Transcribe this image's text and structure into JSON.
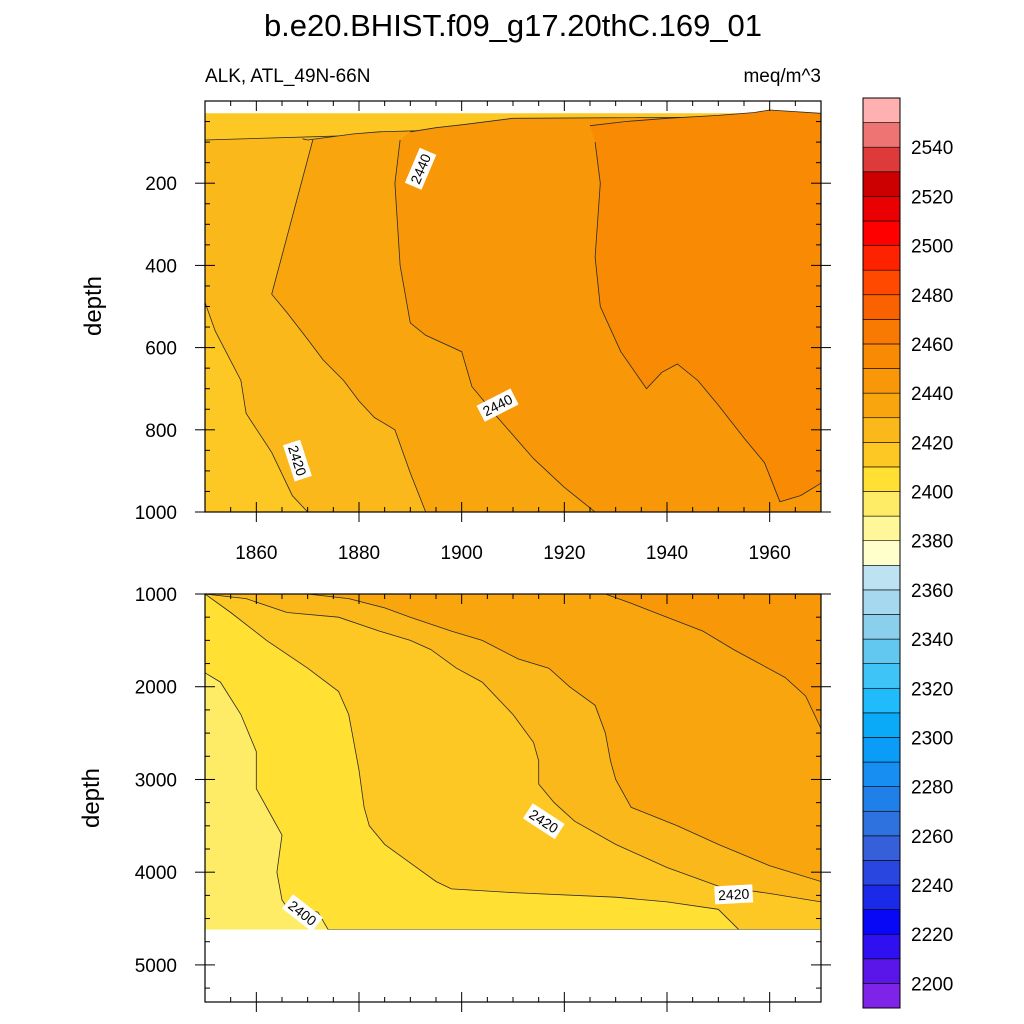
{
  "chart_data": {
    "type": "contour",
    "title": "b.e20.BHIST.f09_g17.20thC.169_01",
    "variable": "ALK, ATL_49N-66N",
    "units": "meq/m^3",
    "xlabel": "",
    "ylabel": "depth",
    "xlim": [
      1850,
      1970
    ],
    "x_ticks": [
      1860,
      1880,
      1900,
      1920,
      1940,
      1960
    ],
    "x_tick_labels": [
      "1860",
      "1880",
      "1900",
      "1920",
      "1940",
      "1960"
    ],
    "panels": [
      {
        "name": "upper",
        "ylim": [
          0,
          1000
        ],
        "y_ticks": [
          200,
          400,
          600,
          800,
          1000
        ],
        "y_tick_labels": [
          "200",
          "400",
          "600",
          "800",
          "1000"
        ],
        "regions": [
          {
            "range": [
              2410,
              2420
            ],
            "points": [
              [
                1850,
                30
              ],
              [
                1970,
                30
              ],
              [
                1970,
                1000
              ],
              [
                1850,
                1000
              ]
            ]
          },
          {
            "range": [
              2420,
              2430
            ],
            "points": [
              [
                1850,
                95
              ],
              [
                1970,
                50
              ],
              [
                1970,
                1000
              ],
              [
                1870,
                1000
              ],
              [
                1867,
                960
              ],
              [
                1863,
                855
              ],
              [
                1858,
                760
              ],
              [
                1857,
                680
              ],
              [
                1852,
                560
              ],
              [
                1850,
                490
              ]
            ]
          },
          {
            "range": [
              2430,
              2440
            ],
            "points": [
              [
                1869,
                92
              ],
              [
                1870,
                95
              ],
              [
                1879,
                80
              ],
              [
                1884,
                75
              ],
              [
                1970,
                45
              ],
              [
                1970,
                1000
              ],
              [
                1893,
                1000
              ],
              [
                1890,
                905
              ],
              [
                1887,
                800
              ],
              [
                1883,
                770
              ],
              [
                1880,
                730
              ],
              [
                1877,
                680
              ],
              [
                1873,
                630
              ],
              [
                1870,
                580
              ],
              [
                1866,
                515
              ],
              [
                1863,
                470
              ],
              [
                1871,
                95
              ]
            ]
          },
          {
            "range": [
              2440,
              2450
            ],
            "points": [
              [
                1890,
                75
              ],
              [
                1895,
                65
              ],
              [
                1900,
                58
              ],
              [
                1910,
                42
              ],
              [
                1970,
                38
              ],
              [
                1970,
                1000
              ],
              [
                1926,
                1000
              ],
              [
                1920,
                940
              ],
              [
                1914,
                870
              ],
              [
                1907,
                770
              ],
              [
                1902,
                695
              ],
              [
                1900,
                610
              ],
              [
                1893,
                570
              ],
              [
                1890,
                540
              ],
              [
                1888,
                400
              ],
              [
                1887,
                200
              ],
              [
                1888,
                95
              ]
            ]
          },
          {
            "range": [
              2450,
              2460
            ],
            "points": [
              [
                1925,
                60
              ],
              [
                1932,
                50
              ],
              [
                1940,
                42
              ],
              [
                1950,
                35
              ],
              [
                1957,
                28
              ],
              [
                1960,
                22
              ],
              [
                1970,
                30
              ],
              [
                1970,
                930
              ],
              [
                1966,
                960
              ],
              [
                1962,
                975
              ],
              [
                1959,
                880
              ],
              [
                1955,
                820
              ],
              [
                1950,
                740
              ],
              [
                1946,
                680
              ],
              [
                1942,
                640
              ],
              [
                1939,
                660
              ],
              [
                1936,
                700
              ],
              [
                1931,
                610
              ],
              [
                1927,
                500
              ],
              [
                1926,
                380
              ],
              [
                1927,
                200
              ],
              [
                1926,
                100
              ]
            ]
          }
        ],
        "contour_labels": [
          {
            "text": "2440",
            "x": 1892,
            "y": 165,
            "angle": -67
          },
          {
            "text": "2440",
            "x": 1907,
            "y": 740,
            "angle": -27
          },
          {
            "text": "2420",
            "x": 1868,
            "y": 875,
            "angle": 72
          }
        ]
      },
      {
        "name": "lower",
        "ylim": [
          1000,
          5400
        ],
        "y_ticks": [
          1000,
          2000,
          3000,
          4000,
          5000
        ],
        "y_tick_labels": [
          "1000",
          "2000",
          "3000",
          "4000",
          "5000"
        ],
        "data_max_depth": 4620,
        "regions": [
          {
            "range": [
              2390,
              2400
            ],
            "points": [
              [
                1850,
                1000
              ],
              [
                1970,
                1000
              ],
              [
                1970,
                4620
              ],
              [
                1850,
                4620
              ]
            ]
          },
          {
            "range": [
              2400,
              2410
            ],
            "points": [
              [
                1850,
                1850
              ],
              [
                1853,
                1950
              ],
              [
                1857,
                2300
              ],
              [
                1860,
                2700
              ],
              [
                1860,
                3100
              ],
              [
                1863,
                3400
              ],
              [
                1865,
                3600
              ],
              [
                1864,
                4000
              ],
              [
                1865,
                4300
              ],
              [
                1866,
                4380
              ],
              [
                1872,
                4430
              ],
              [
                1874,
                4620
              ],
              [
                1970,
                4620
              ],
              [
                1970,
                1000
              ],
              [
                1850,
                1000
              ]
            ]
          },
          {
            "range": [
              2410,
              2420
            ],
            "points": [
              [
                1850,
                1000
              ],
              [
                1855,
                1200
              ],
              [
                1862,
                1500
              ],
              [
                1870,
                1800
              ],
              [
                1876,
                2050
              ],
              [
                1878,
                2300
              ],
              [
                1879,
                2600
              ],
              [
                1880,
                2900
              ],
              [
                1881,
                3300
              ],
              [
                1882,
                3500
              ],
              [
                1885,
                3700
              ],
              [
                1890,
                3900
              ],
              [
                1895,
                4100
              ],
              [
                1898,
                4180
              ],
              [
                1910,
                4220
              ],
              [
                1930,
                4270
              ],
              [
                1940,
                4320
              ],
              [
                1950,
                4400
              ],
              [
                1954,
                4620
              ],
              [
                1970,
                4620
              ],
              [
                1970,
                1000
              ]
            ]
          },
          {
            "range": [
              2420,
              2430
            ],
            "points": [
              [
                1850,
                1000
              ],
              [
                1858,
                1050
              ],
              [
                1866,
                1200
              ],
              [
                1876,
                1250
              ],
              [
                1884,
                1400
              ],
              [
                1890,
                1500
              ],
              [
                1894,
                1600
              ],
              [
                1899,
                1800
              ],
              [
                1904,
                1950
              ],
              [
                1910,
                2300
              ],
              [
                1914,
                2600
              ],
              [
                1915,
                2800
              ],
              [
                1915,
                3050
              ],
              [
                1918,
                3250
              ],
              [
                1922,
                3450
              ],
              [
                1930,
                3700
              ],
              [
                1940,
                3950
              ],
              [
                1950,
                4150
              ],
              [
                1960,
                4230
              ],
              [
                1970,
                4320
              ],
              [
                1970,
                1000
              ]
            ]
          },
          {
            "range": [
              2430,
              2440
            ],
            "points": [
              [
                1870,
                1000
              ],
              [
                1878,
                1050
              ],
              [
                1885,
                1150
              ],
              [
                1890,
                1250
              ],
              [
                1898,
                1400
              ],
              [
                1904,
                1500
              ],
              [
                1911,
                1700
              ],
              [
                1917,
                1800
              ],
              [
                1921,
                2000
              ],
              [
                1926,
                2200
              ],
              [
                1928,
                2500
              ],
              [
                1929,
                2800
              ],
              [
                1930,
                3000
              ],
              [
                1933,
                3300
              ],
              [
                1942,
                3500
              ],
              [
                1950,
                3700
              ],
              [
                1960,
                3930
              ],
              [
                1970,
                4100
              ],
              [
                1970,
                1000
              ]
            ]
          },
          {
            "range": [
              2440,
              2450
            ],
            "points": [
              [
                1928,
                1000
              ],
              [
                1933,
                1100
              ],
              [
                1940,
                1250
              ],
              [
                1947,
                1400
              ],
              [
                1953,
                1600
              ],
              [
                1958,
                1750
              ],
              [
                1963,
                1900
              ],
              [
                1967,
                2100
              ],
              [
                1970,
                2450
              ],
              [
                1970,
                1000
              ]
            ]
          }
        ],
        "contour_labels": [
          {
            "text": "2420",
            "x": 1916,
            "y": 3450,
            "angle": 33
          },
          {
            "text": "2420",
            "x": 1953,
            "y": 4240,
            "angle": -3
          },
          {
            "text": "2400",
            "x": 1869,
            "y": 4440,
            "angle": 38
          }
        ]
      }
    ],
    "colorbar": {
      "levels": [
        2200,
        2210,
        2220,
        2230,
        2240,
        2250,
        2260,
        2270,
        2280,
        2290,
        2300,
        2310,
        2320,
        2330,
        2340,
        2350,
        2360,
        2370,
        2380,
        2390,
        2400,
        2410,
        2420,
        2430,
        2440,
        2450,
        2460,
        2470,
        2480,
        2490,
        2500,
        2510,
        2520,
        2530,
        2540,
        2550
      ],
      "labels": [
        "2200",
        "2220",
        "2240",
        "2260",
        "2280",
        "2300",
        "2320",
        "2340",
        "2360",
        "2380",
        "2400",
        "2420",
        "2440",
        "2460",
        "2480",
        "2500",
        "2520",
        "2540"
      ],
      "colors": [
        "#7f23e8",
        "#5a16e8",
        "#2f10f0",
        "#0808f6",
        "#1a2ae8",
        "#2a46e0",
        "#3560da",
        "#2e72e0",
        "#2080ea",
        "#168ef2",
        "#0a9cf6",
        "#0aaaf8",
        "#20bbfa",
        "#3ec4f6",
        "#62c8f0",
        "#8ad0ec",
        "#a6d8f0",
        "#bde2f2",
        "#ffffcc",
        "#fff799",
        "#ffec66",
        "#ffe033",
        "#fdc824",
        "#fab81a",
        "#f9a60e",
        "#f89808",
        "#f88a04",
        "#f87a02",
        "#fa6200",
        "#ff4800",
        "#ff2200",
        "#ff0000",
        "#ea0000",
        "#cc0000",
        "#de3a3a",
        "#ee7373",
        "#ffb0b0"
      ]
    }
  }
}
